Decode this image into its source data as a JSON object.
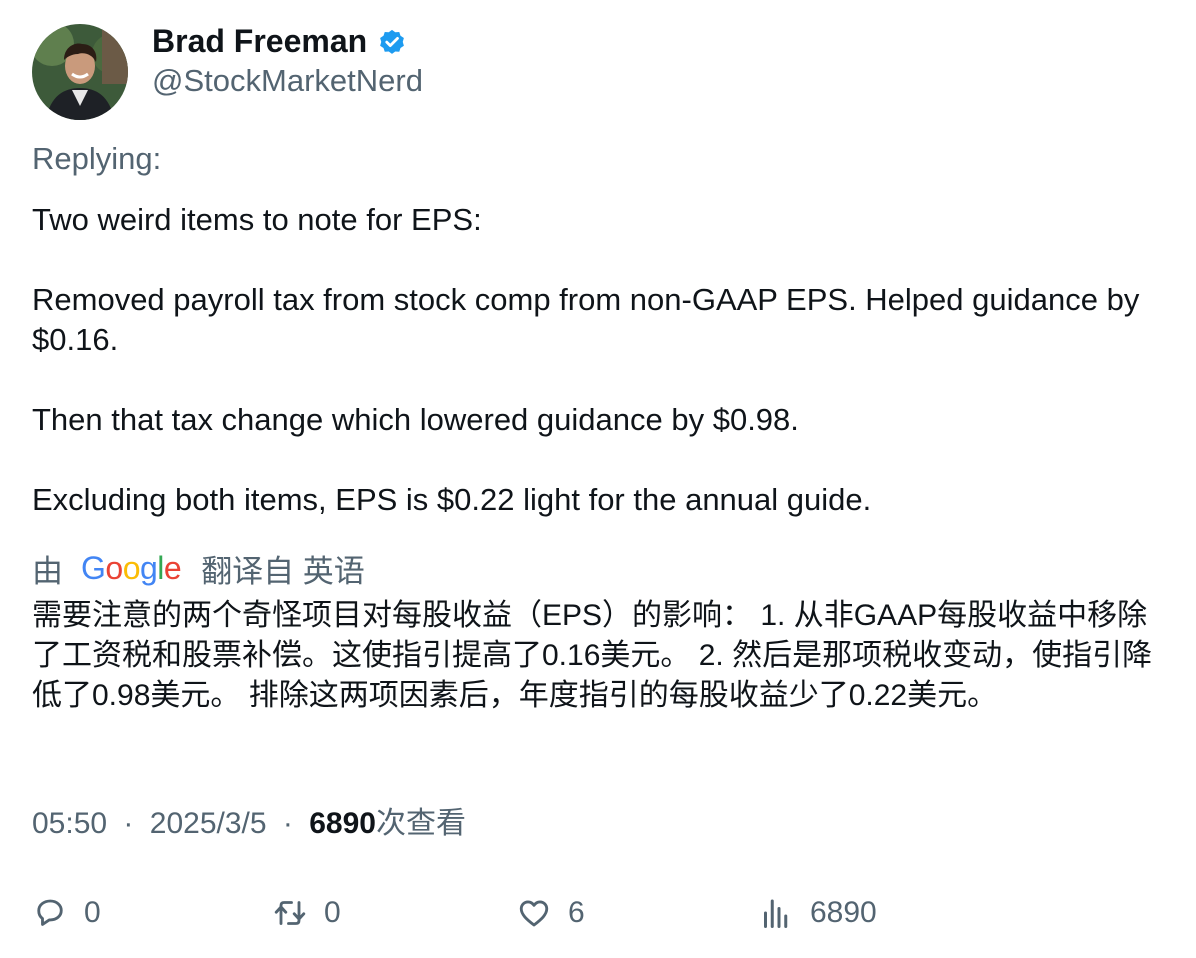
{
  "author": {
    "name": "Brad Freeman",
    "handle": "@StockMarketNerd",
    "verified": true,
    "verified_color": "#1d9bf0"
  },
  "replying_label": "Replying:",
  "tweet": {
    "paragraphs": [
      "Two weird items to note for EPS:",
      "Removed payroll tax from stock comp from non-GAAP EPS. Helped guidance by $0.16.",
      "Then that tax change which lowered guidance by $0.98.",
      "Excluding both items, EPS is $0.22 light for the annual guide."
    ]
  },
  "translation": {
    "prefix": "由",
    "brand": "Google",
    "suffix": "翻译自 英语",
    "text": "需要注意的两个奇怪项目对每股收益（EPS）的影响： 1. 从非GAAP每股收益中移除了工资税和股票补偿。这使指引提高了0.16美元。 2. 然后是那项税收变动，使指引降低了0.98美元。 排除这两项因素后，年度指引的每股收益少了0.22美元。"
  },
  "meta": {
    "time": "05:50",
    "separator": "·",
    "date": "2025/3/5",
    "views_count": "6890",
    "views_label": "次查看"
  },
  "actions": {
    "reply": {
      "icon": "reply-icon",
      "count": "0"
    },
    "retweet": {
      "icon": "retweet-icon",
      "count": "0"
    },
    "like": {
      "icon": "heart-icon",
      "count": "6"
    },
    "views": {
      "icon": "analytics-icon",
      "count": "6890"
    }
  },
  "colors": {
    "text_primary": "#0f1419",
    "text_secondary": "#536471",
    "google_blue": "#4285f4",
    "google_red": "#ea4335",
    "google_yellow": "#fbbc05",
    "google_green": "#34a853"
  }
}
